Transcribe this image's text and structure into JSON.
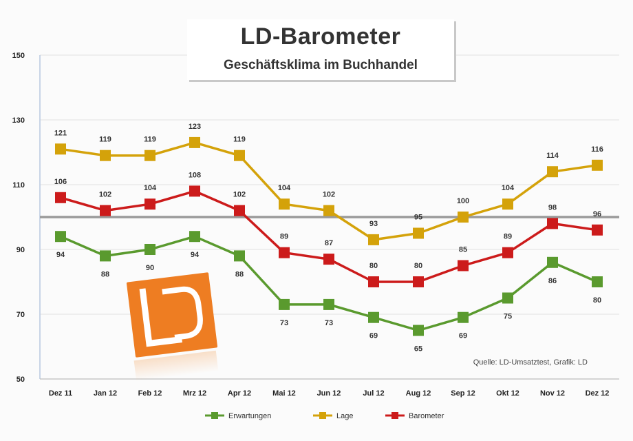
{
  "chart_data": {
    "type": "line",
    "title": "LD-Barometer",
    "subtitle": "Geschäftsklima im Buchhandel",
    "source": "Quelle: LD-Umsatztest, Grafik: LD",
    "categories": [
      "Dez 11",
      "Jan 12",
      "Feb 12",
      "Mrz 12",
      "Apr 12",
      "Mai 12",
      "Jun 12",
      "Jul 12",
      "Aug 12",
      "Sep 12",
      "Okt 12",
      "Nov 12",
      "Dez 12"
    ],
    "ylim": [
      50,
      150
    ],
    "yticks": [
      50,
      70,
      90,
      110,
      130,
      150
    ],
    "reference_line": 100,
    "grid": true,
    "legend_position": "bottom",
    "series": [
      {
        "name": "Erwartungen",
        "color": "#5a9a2e",
        "values": [
          94,
          88,
          90,
          94,
          88,
          73,
          73,
          69,
          65,
          69,
          75,
          86,
          80
        ]
      },
      {
        "name": "Lage",
        "color": "#d4a20a",
        "values": [
          121,
          119,
          119,
          123,
          119,
          104,
          102,
          93,
          95,
          100,
          104,
          114,
          116
        ]
      },
      {
        "name": "Barometer",
        "color": "#cc1b1b",
        "values": [
          106,
          102,
          104,
          108,
          102,
          89,
          87,
          80,
          80,
          85,
          89,
          98,
          96
        ]
      }
    ]
  },
  "logo": {
    "text": "LD",
    "color": "#ee7d22"
  }
}
